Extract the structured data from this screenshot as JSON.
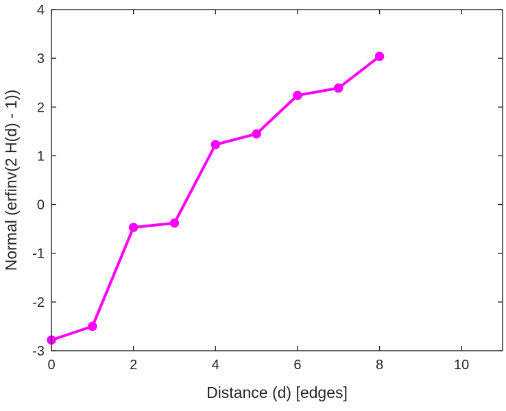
{
  "chart_data": {
    "type": "line",
    "x": [
      0,
      1,
      2,
      3,
      4,
      5,
      6,
      7,
      8
    ],
    "y": [
      -2.78,
      -2.5,
      -0.47,
      -0.38,
      1.23,
      1.45,
      2.24,
      2.39,
      3.04
    ],
    "xlabel": "Distance (d) [edges]",
    "ylabel": "Normal (erfinv(2 H(d) - 1))",
    "xlim": [
      0,
      11
    ],
    "ylim": [
      -3,
      4
    ],
    "xticks": [
      0,
      2,
      4,
      6,
      8,
      10
    ],
    "yticks": [
      -3,
      -2,
      -1,
      0,
      1,
      2,
      3,
      4
    ],
    "grid": false,
    "legend": null,
    "title": "",
    "line_color": "#FF00FF",
    "marker": "circle",
    "marker_size": 6,
    "line_width": 4,
    "axis_color": "#262626",
    "background_color": "#FFFFFF"
  }
}
